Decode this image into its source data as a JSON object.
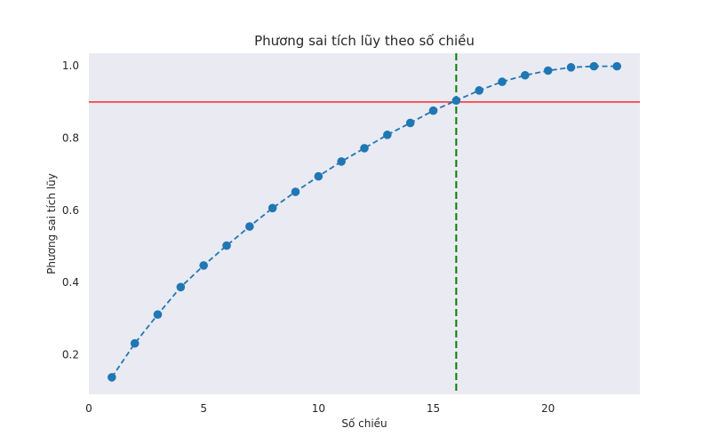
{
  "chart_data": {
    "type": "line",
    "title": "Phương sai tích lũy theo số chiều",
    "xlabel": "Số chiều",
    "ylabel": "Phương sai tích lũy",
    "xlim": [
      0,
      24
    ],
    "ylim": [
      0.09,
      1.035
    ],
    "xticks": [
      0,
      5,
      10,
      15,
      20
    ],
    "yticks": [
      0.2,
      0.4,
      0.6,
      0.8,
      1.0
    ],
    "ytick_labels": [
      "0.2",
      "0.4",
      "0.6",
      "0.8",
      "1.0"
    ],
    "grid": false,
    "background_color": "#eaeaf2",
    "series": [
      {
        "x": [
          1,
          2,
          3,
          4,
          5,
          6,
          7,
          8,
          9,
          10,
          11,
          12,
          13,
          14,
          15,
          16,
          17,
          18,
          19,
          20,
          21,
          22,
          23
        ],
        "y": [
          0.137,
          0.231,
          0.311,
          0.387,
          0.447,
          0.502,
          0.555,
          0.606,
          0.651,
          0.694,
          0.735,
          0.772,
          0.809,
          0.842,
          0.876,
          0.904,
          0.932,
          0.956,
          0.974,
          0.987,
          0.996,
          0.999,
          0.999
        ],
        "color": "#1f77b4",
        "line_style": "dashed",
        "marker": "circle"
      }
    ],
    "reference_lines": [
      {
        "orientation": "horizontal",
        "value": 0.9,
        "color": "#ff0000",
        "line_style": "solid"
      },
      {
        "orientation": "vertical",
        "value": 16,
        "color": "#008000",
        "line_style": "dashed"
      }
    ]
  }
}
